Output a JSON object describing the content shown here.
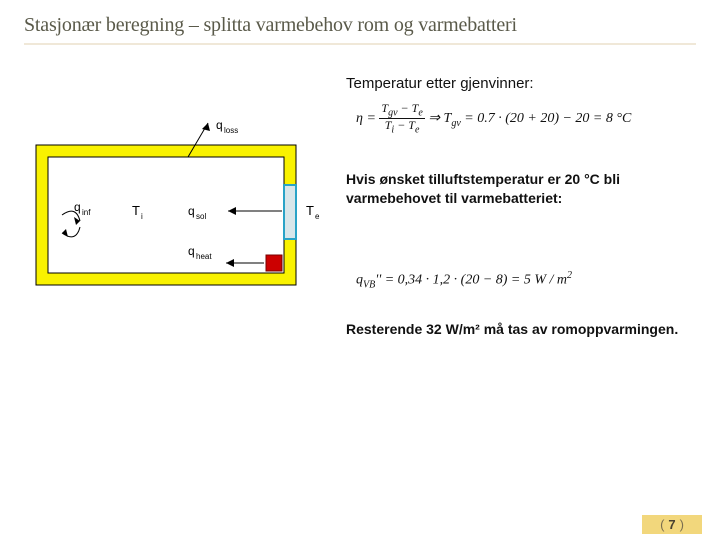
{
  "title": "Stasjonær beregning – splitta varmebehov rom og varmebatteri",
  "subheading1": "Temperatur etter gjenvinner:",
  "eq1_html": "<span class='frac'><span class='num'>T<sub>gv</sub> − T<sub>e</sub></span><span class='den'>T<sub>i</sub> − T<sub>e</sub></span></span>&nbsp;⇒&nbsp;T<sub>gv</sub> = 0.7 · (20 + 20) − 20 = 8&nbsp;°C",
  "paragraph": "Hvis ønsket tilluftstemperatur er 20 °C bli varmebehovet til varmebatteriet:",
  "eq2_html": "q<sub>VB</sub>'' = 0,34 · 1,2 · (20 − 8) = 5&nbsp;<i>W / m</i><sup>2</sup>",
  "closing": "Resterende 32 W/m² må tas av romoppvarmingen.",
  "slide_number": "7",
  "diagram": {
    "labels": {
      "qloss": "q loss",
      "qinf": "q inf",
      "Ti": "T i",
      "qsol": "q sol",
      "qheat": "q heat",
      "Te": "T e"
    },
    "colors": {
      "wall": "#f9f200",
      "bg": "#ffffff",
      "line": "#000000",
      "window": "#2aa3c7",
      "window_fill": "#d8e6ea",
      "heater": "#cc0000"
    }
  }
}
